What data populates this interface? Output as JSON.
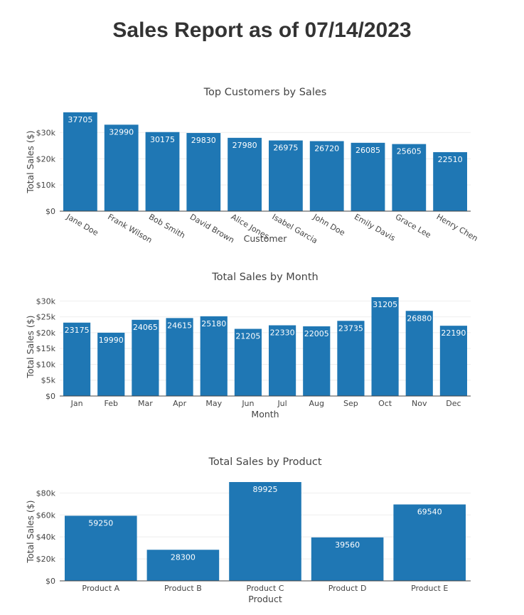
{
  "page": {
    "title": "Sales Report as of 07/14/2023"
  },
  "colors": {
    "bar": "#1f77b4",
    "bar_label": "#ffffff",
    "text": "#444444",
    "title_text": "#444444",
    "grid": "#eeeeee",
    "axis": "#444444"
  },
  "chart_data": [
    {
      "type": "bar",
      "title": "Top Customers by Sales",
      "xlabel": "Customer",
      "ylabel": "Total Sales ($)",
      "categories": [
        "Jane Doe",
        "Frank Wilson",
        "Bob Smith",
        "David Brown",
        "Alice Jones",
        "Isabel Garcia",
        "John Doe",
        "Emily Davis",
        "Grace Lee",
        "Henry Chen"
      ],
      "values": [
        37705,
        32990,
        30175,
        29830,
        27980,
        26975,
        26720,
        26085,
        25605,
        22510
      ],
      "ylim": [
        0,
        37705
      ],
      "yticks": [
        0,
        10000,
        20000,
        30000
      ],
      "ytick_labels": [
        "$0",
        "$10k",
        "$20k",
        "$30k"
      ],
      "rotated_x_labels": true,
      "grid": true
    },
    {
      "type": "bar",
      "title": "Total Sales by Month",
      "xlabel": "Month",
      "ylabel": "Total Sales ($)",
      "categories": [
        "Jan",
        "Feb",
        "Mar",
        "Apr",
        "May",
        "Jun",
        "Jul",
        "Aug",
        "Sep",
        "Oct",
        "Nov",
        "Dec"
      ],
      "values": [
        23175,
        19990,
        24065,
        24615,
        25180,
        21205,
        22330,
        22005,
        23735,
        31205,
        26880,
        22190
      ],
      "ylim": [
        0,
        31205
      ],
      "yticks": [
        0,
        5000,
        10000,
        15000,
        20000,
        25000,
        30000
      ],
      "ytick_labels": [
        "$0",
        "$5k",
        "$10k",
        "$15k",
        "$20k",
        "$25k",
        "$30k"
      ],
      "rotated_x_labels": false,
      "grid": true
    },
    {
      "type": "bar",
      "title": "Total Sales by Product",
      "xlabel": "Product",
      "ylabel": "Total Sales ($)",
      "categories": [
        "Product A",
        "Product B",
        "Product C",
        "Product D",
        "Product E"
      ],
      "values": [
        59250,
        28300,
        89925,
        39560,
        69540
      ],
      "ylim": [
        0,
        89925
      ],
      "yticks": [
        0,
        20000,
        40000,
        60000,
        80000
      ],
      "ytick_labels": [
        "$0",
        "$20k",
        "$40k",
        "$60k",
        "$80k"
      ],
      "rotated_x_labels": false,
      "grid": true
    }
  ]
}
